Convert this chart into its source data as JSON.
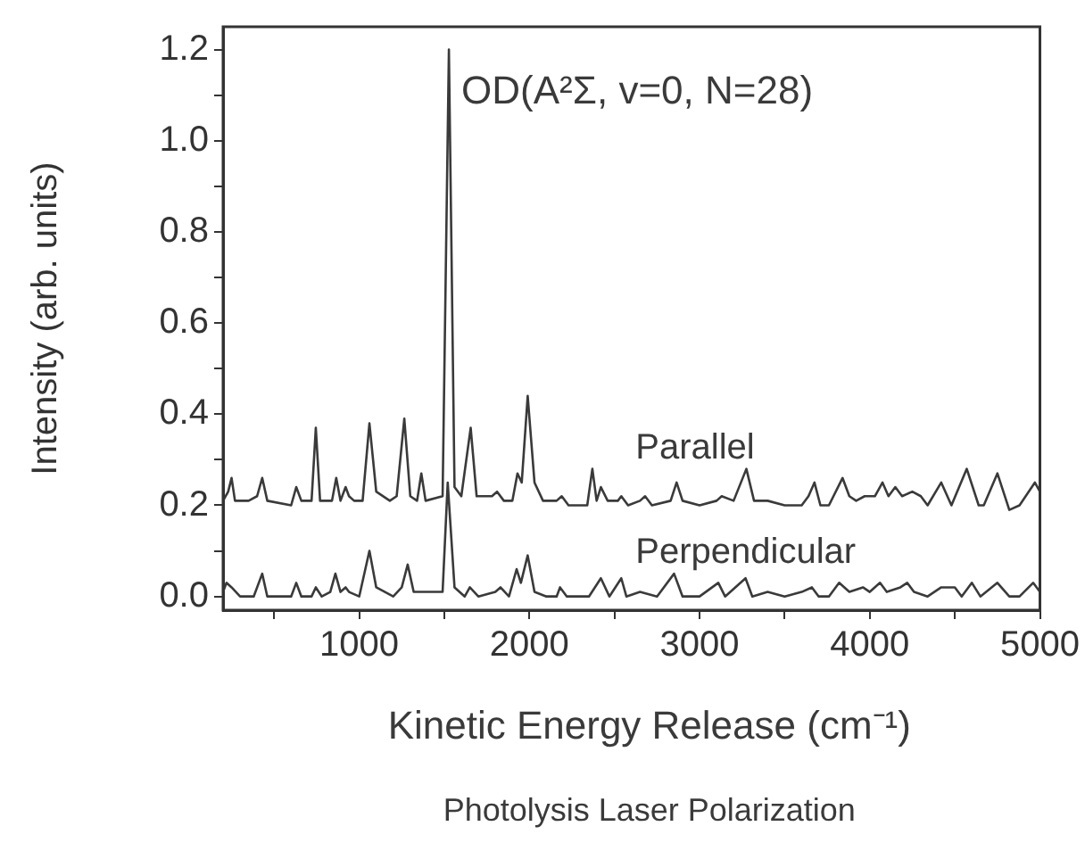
{
  "chart_data": {
    "type": "line",
    "xlabel": "Kinetic Energy Release (cm⁻¹)",
    "ylabel": "Intensity (arb. units)",
    "annotations": [
      {
        "text": "OD(A²Σ, v=0, N=28)",
        "x": 1527,
        "y": 1.2
      },
      "Photolysis Laser Polarization"
    ],
    "xlim": [
      200,
      5000
    ],
    "xticks": [
      {
        "value": 500,
        "label": null
      },
      1000,
      {
        "value": 1500,
        "label": null
      },
      2000,
      {
        "value": 2500,
        "label": null
      },
      3000,
      {
        "value": 3500,
        "label": null
      },
      4000,
      {
        "value": 4500,
        "label": null
      },
      5000
    ],
    "ylim": [
      -0.03,
      1.25
    ],
    "yticks": [
      {
        "value": 0,
        "label": "0.0"
      },
      {
        "value": 0.1,
        "label": null
      },
      {
        "value": 0.2,
        "label": "0.2"
      },
      {
        "value": 0.3,
        "label": null
      },
      {
        "value": 0.4,
        "label": "0.4"
      },
      {
        "value": 0.5,
        "label": null
      },
      {
        "value": 0.6,
        "label": "0.6"
      },
      {
        "value": 0.7,
        "label": null
      },
      {
        "value": 0.8,
        "label": "0.8"
      },
      {
        "value": 0.9,
        "label": null
      },
      {
        "value": 1.0,
        "label": "1.0"
      },
      {
        "value": 1.1,
        "label": null
      },
      {
        "value": 1.2,
        "label": "1.2"
      }
    ],
    "grid": false,
    "legend": false,
    "marker": "none",
    "line_style": "solid",
    "series": [
      {
        "name": "Parallel",
        "color": "#3a3a3a",
        "x": [
          200,
          230,
          250,
          270,
          350,
          400,
          430,
          460,
          600,
          630,
          660,
          720,
          745,
          770,
          840,
          865,
          890,
          920,
          940,
          970,
          1020,
          1060,
          1100,
          1180,
          1220,
          1265,
          1300,
          1340,
          1365,
          1390,
          1490,
          1527,
          1560,
          1600,
          1655,
          1690,
          1780,
          1810,
          1850,
          1900,
          1930,
          1955,
          1990,
          2030,
          2080,
          2160,
          2190,
          2230,
          2340,
          2370,
          2395,
          2420,
          2460,
          2520,
          2540,
          2580,
          2650,
          2680,
          2720,
          2830,
          2865,
          2900,
          3000,
          3100,
          3130,
          3200,
          3275,
          3320,
          3400,
          3500,
          3600,
          3640,
          3675,
          3710,
          3760,
          3840,
          3880,
          3920,
          3970,
          4030,
          4075,
          4110,
          4150,
          4190,
          4250,
          4300,
          4340,
          4420,
          4480,
          4570,
          4640,
          4670,
          4750,
          4820,
          4880,
          4970,
          5000
        ],
        "values": [
          0.21,
          0.23,
          0.26,
          0.21,
          0.21,
          0.22,
          0.26,
          0.21,
          0.2,
          0.24,
          0.21,
          0.21,
          0.37,
          0.21,
          0.21,
          0.26,
          0.21,
          0.24,
          0.22,
          0.21,
          0.21,
          0.38,
          0.23,
          0.21,
          0.22,
          0.39,
          0.22,
          0.21,
          0.27,
          0.21,
          0.22,
          1.2,
          0.24,
          0.22,
          0.37,
          0.22,
          0.22,
          0.23,
          0.21,
          0.21,
          0.27,
          0.25,
          0.44,
          0.25,
          0.21,
          0.21,
          0.22,
          0.2,
          0.2,
          0.28,
          0.21,
          0.24,
          0.21,
          0.21,
          0.22,
          0.2,
          0.21,
          0.22,
          0.2,
          0.21,
          0.25,
          0.21,
          0.2,
          0.21,
          0.22,
          0.21,
          0.28,
          0.21,
          0.21,
          0.2,
          0.2,
          0.22,
          0.25,
          0.2,
          0.2,
          0.26,
          0.22,
          0.21,
          0.22,
          0.22,
          0.25,
          0.22,
          0.24,
          0.22,
          0.23,
          0.22,
          0.2,
          0.25,
          0.2,
          0.28,
          0.2,
          0.2,
          0.27,
          0.19,
          0.2,
          0.25,
          0.23
        ]
      },
      {
        "name": "Perpendicular",
        "color": "#3a3a3a",
        "x": [
          200,
          220,
          250,
          300,
          380,
          430,
          460,
          600,
          630,
          660,
          720,
          745,
          780,
          830,
          860,
          890,
          920,
          940,
          1000,
          1060,
          1100,
          1200,
          1250,
          1285,
          1320,
          1450,
          1490,
          1520,
          1560,
          1620,
          1650,
          1700,
          1800,
          1830,
          1880,
          1925,
          1950,
          1990,
          2030,
          2100,
          2160,
          2180,
          2220,
          2350,
          2420,
          2470,
          2540,
          2570,
          2650,
          2750,
          2850,
          2900,
          3000,
          3110,
          3150,
          3270,
          3310,
          3400,
          3500,
          3600,
          3660,
          3700,
          3760,
          3820,
          3880,
          3960,
          4000,
          4060,
          4100,
          4180,
          4220,
          4260,
          4340,
          4420,
          4500,
          4540,
          4600,
          4650,
          4750,
          4820,
          4880,
          4960,
          5000
        ],
        "values": [
          0.01,
          0.03,
          0.02,
          0.0,
          0.0,
          0.05,
          0.0,
          0.0,
          0.03,
          0.0,
          0.0,
          0.02,
          0.0,
          0.01,
          0.05,
          0.01,
          0.02,
          0.01,
          0.0,
          0.1,
          0.02,
          0.0,
          0.02,
          0.07,
          0.01,
          0.01,
          0.01,
          0.25,
          0.02,
          0.0,
          0.02,
          0.0,
          0.01,
          0.02,
          0.0,
          0.06,
          0.03,
          0.09,
          0.01,
          0.0,
          0.0,
          0.02,
          0.0,
          0.0,
          0.04,
          0.0,
          0.04,
          0.0,
          0.01,
          0.0,
          0.05,
          0.0,
          0.0,
          0.03,
          0.0,
          0.04,
          0.0,
          0.01,
          0.0,
          0.01,
          0.02,
          0.0,
          0.0,
          0.03,
          0.01,
          0.02,
          0.01,
          0.03,
          0.01,
          0.02,
          0.03,
          0.01,
          0.0,
          0.02,
          0.02,
          0.0,
          0.03,
          0.0,
          0.03,
          0.0,
          0.0,
          0.03,
          0.01
        ]
      }
    ]
  }
}
